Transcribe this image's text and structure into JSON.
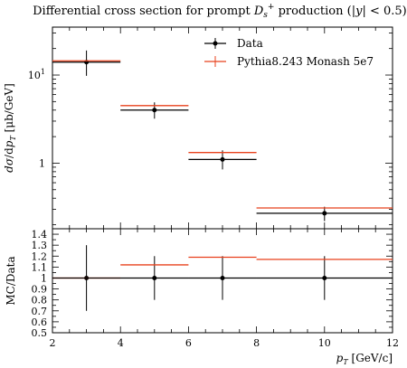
{
  "chart_data": [
    {
      "type": "scatter",
      "panel": "main",
      "title": "Differential cross section for prompt D_s^+ production (|y| < 0.5).",
      "ylabel": "dσ/dp_T [μb/GeV]",
      "xlabel": "",
      "yscale": "log",
      "xlim": [
        2,
        12
      ],
      "ylim": [
        0.18,
        35
      ],
      "y_ticklabels": [
        {
          "value": 10,
          "label": "10¹"
        },
        {
          "value": 1,
          "label": "1"
        }
      ],
      "legend_position": "top-right",
      "series": [
        {
          "name": "Data",
          "color": "#000000",
          "points": [
            {
              "xlo": 2,
              "xhi": 4,
              "x": 3,
              "y": 14.0,
              "ylo": 9.8,
              "yhi": 19.0
            },
            {
              "xlo": 4,
              "xhi": 6,
              "x": 5,
              "y": 4.0,
              "ylo": 3.2,
              "yhi": 4.9
            },
            {
              "xlo": 6,
              "xhi": 8,
              "x": 7,
              "y": 1.1,
              "ylo": 0.85,
              "yhi": 1.4
            },
            {
              "xlo": 8,
              "xhi": 12,
              "x": 10,
              "y": 0.27,
              "ylo": 0.22,
              "yhi": 0.32
            }
          ]
        },
        {
          "name": "Pythia8.243 Monash 5e7",
          "color": "#e8401c",
          "points": [
            {
              "xlo": 2,
              "xhi": 4,
              "x": 3,
              "y": 14.5
            },
            {
              "xlo": 4,
              "xhi": 6,
              "x": 5,
              "y": 4.5
            },
            {
              "xlo": 6,
              "xhi": 8,
              "x": 7,
              "y": 1.32
            },
            {
              "xlo": 8,
              "xhi": 12,
              "x": 10,
              "y": 0.31
            }
          ]
        }
      ]
    },
    {
      "type": "scatter",
      "panel": "ratio",
      "ylabel": "MC/Data",
      "xlabel": "p_T [GeV/c]",
      "xlim": [
        2,
        12
      ],
      "ylim": [
        0.5,
        1.45
      ],
      "x_ticks": [
        2,
        4,
        6,
        8,
        10,
        12
      ],
      "y_ticks": [
        "0.5",
        "0.6",
        "0.7",
        "0.8",
        "0.9",
        "1",
        "1.1",
        "1.2",
        "1.3",
        "1.4"
      ],
      "series": [
        {
          "name": "Data",
          "color": "#000000",
          "points": [
            {
              "xlo": 2,
              "xhi": 4,
              "x": 3,
              "y": 1.0,
              "ylo": 0.7,
              "yhi": 1.3
            },
            {
              "xlo": 4,
              "xhi": 6,
              "x": 5,
              "y": 1.0,
              "ylo": 0.8,
              "yhi": 1.2
            },
            {
              "xlo": 6,
              "xhi": 8,
              "x": 7,
              "y": 1.0,
              "ylo": 0.8,
              "yhi": 1.2
            },
            {
              "xlo": 8,
              "xhi": 12,
              "x": 10,
              "y": 1.0,
              "ylo": 0.8,
              "yhi": 1.2
            }
          ]
        },
        {
          "name": "Pythia8.243 Monash 5e7",
          "color": "#e8401c",
          "points": [
            {
              "xlo": 2,
              "xhi": 4,
              "x": 3,
              "y": 1.0
            },
            {
              "xlo": 4,
              "xhi": 6,
              "x": 5,
              "y": 1.12
            },
            {
              "xlo": 6,
              "xhi": 8,
              "x": 7,
              "y": 1.19
            },
            {
              "xlo": 8,
              "xhi": 12,
              "x": 10,
              "y": 1.17
            }
          ]
        }
      ]
    }
  ]
}
